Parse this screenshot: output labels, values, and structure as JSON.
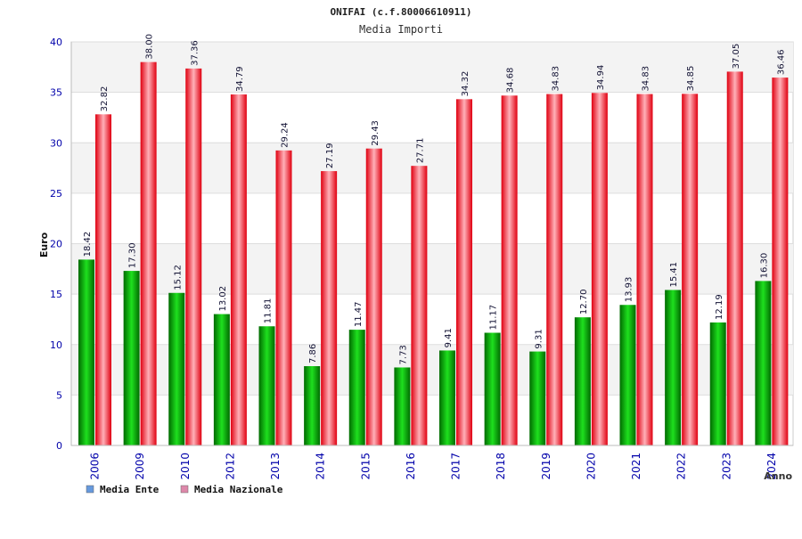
{
  "chart_data": {
    "type": "bar",
    "title": "ONIFAI (c.f.80006610911)",
    "subtitle": "Media Importi",
    "xlabel": "Anno",
    "ylabel": "Euro",
    "ylim": [
      0,
      40
    ],
    "yticks": [
      "0",
      "5",
      "10",
      "15",
      "20",
      "25",
      "30",
      "35",
      "40"
    ],
    "grid": true,
    "legend_position": "bottom-left",
    "categories": [
      "2006",
      "2009",
      "2010",
      "2012",
      "2013",
      "2014",
      "2015",
      "2016",
      "2017",
      "2018",
      "2019",
      "2020",
      "2021",
      "2022",
      "2023",
      "2024"
    ],
    "series": [
      {
        "name": "Media Ente",
        "color": "#00a000",
        "legend_color": "#6699dd",
        "values": [
          18.42,
          17.3,
          15.12,
          13.02,
          11.81,
          7.86,
          11.47,
          7.73,
          9.41,
          11.17,
          9.31,
          12.7,
          13.93,
          15.41,
          12.19,
          16.3
        ],
        "labels": [
          "18.42",
          "17.30",
          "15.12",
          "13.02",
          "11.81",
          "7.86",
          "11.47",
          "7.73",
          "9.41",
          "11.17",
          "9.31",
          "12.70",
          "13.93",
          "15.41",
          "12.19",
          "16.30"
        ]
      },
      {
        "name": "Media Nazionale",
        "color": "#e80010",
        "legend_color": "#dd88aa",
        "values": [
          32.82,
          38.0,
          37.36,
          34.79,
          29.24,
          27.19,
          29.43,
          27.71,
          34.32,
          34.68,
          34.83,
          34.94,
          34.83,
          34.85,
          37.05,
          36.46
        ],
        "labels": [
          "32.82",
          "38.00",
          "37.36",
          "34.79",
          "29.24",
          "27.19",
          "29.43",
          "27.71",
          "34.32",
          "34.68",
          "34.83",
          "34.94",
          "34.83",
          "34.85",
          "37.05",
          "36.46"
        ]
      }
    ]
  }
}
